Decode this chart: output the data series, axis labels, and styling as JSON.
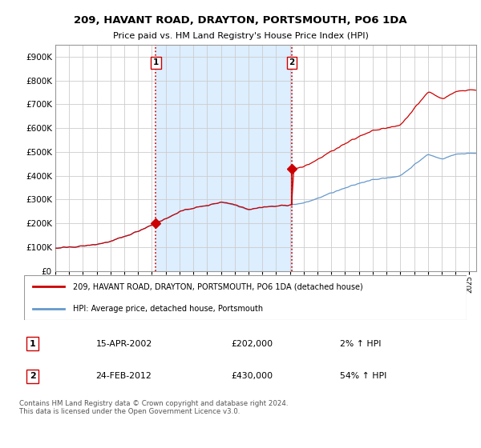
{
  "title": "209, HAVANT ROAD, DRAYTON, PORTSMOUTH, PO6 1DA",
  "subtitle": "Price paid vs. HM Land Registry's House Price Index (HPI)",
  "legend_line1": "209, HAVANT ROAD, DRAYTON, PORTSMOUTH, PO6 1DA (detached house)",
  "legend_line2": "HPI: Average price, detached house, Portsmouth",
  "footnote": "Contains HM Land Registry data © Crown copyright and database right 2024.\nThis data is licensed under the Open Government Licence v3.0.",
  "transaction1_label": "1",
  "transaction1_date": "15-APR-2002",
  "transaction1_price": "£202,000",
  "transaction1_hpi": "2% ↑ HPI",
  "transaction2_label": "2",
  "transaction2_date": "24-FEB-2012",
  "transaction2_price": "£430,000",
  "transaction2_hpi": "54% ↑ HPI",
  "red_color": "#cc0000",
  "blue_color": "#6699cc",
  "shade_color": "#ddeeff",
  "plot_bg": "#ffffff",
  "grid_color": "#cccccc",
  "ylim": [
    0,
    950000
  ],
  "ytick_values": [
    0,
    100000,
    200000,
    300000,
    400000,
    500000,
    600000,
    700000,
    800000,
    900000
  ],
  "ytick_labels": [
    "£0",
    "£100K",
    "£200K",
    "£300K",
    "£400K",
    "£500K",
    "£600K",
    "£700K",
    "£800K",
    "£900K"
  ],
  "xmin": 1995.0,
  "xmax": 2025.5,
  "vline1_x": 2002.29,
  "vline2_x": 2012.15,
  "marker1_x": 2002.29,
  "marker1_y": 202000,
  "marker2_x": 2012.15,
  "marker2_y": 430000,
  "hpi_anchor_x": 2002.29,
  "hpi_anchor_y": 198000,
  "hpi2_anchor_x": 2012.15,
  "hpi2_anchor_y": 278000
}
